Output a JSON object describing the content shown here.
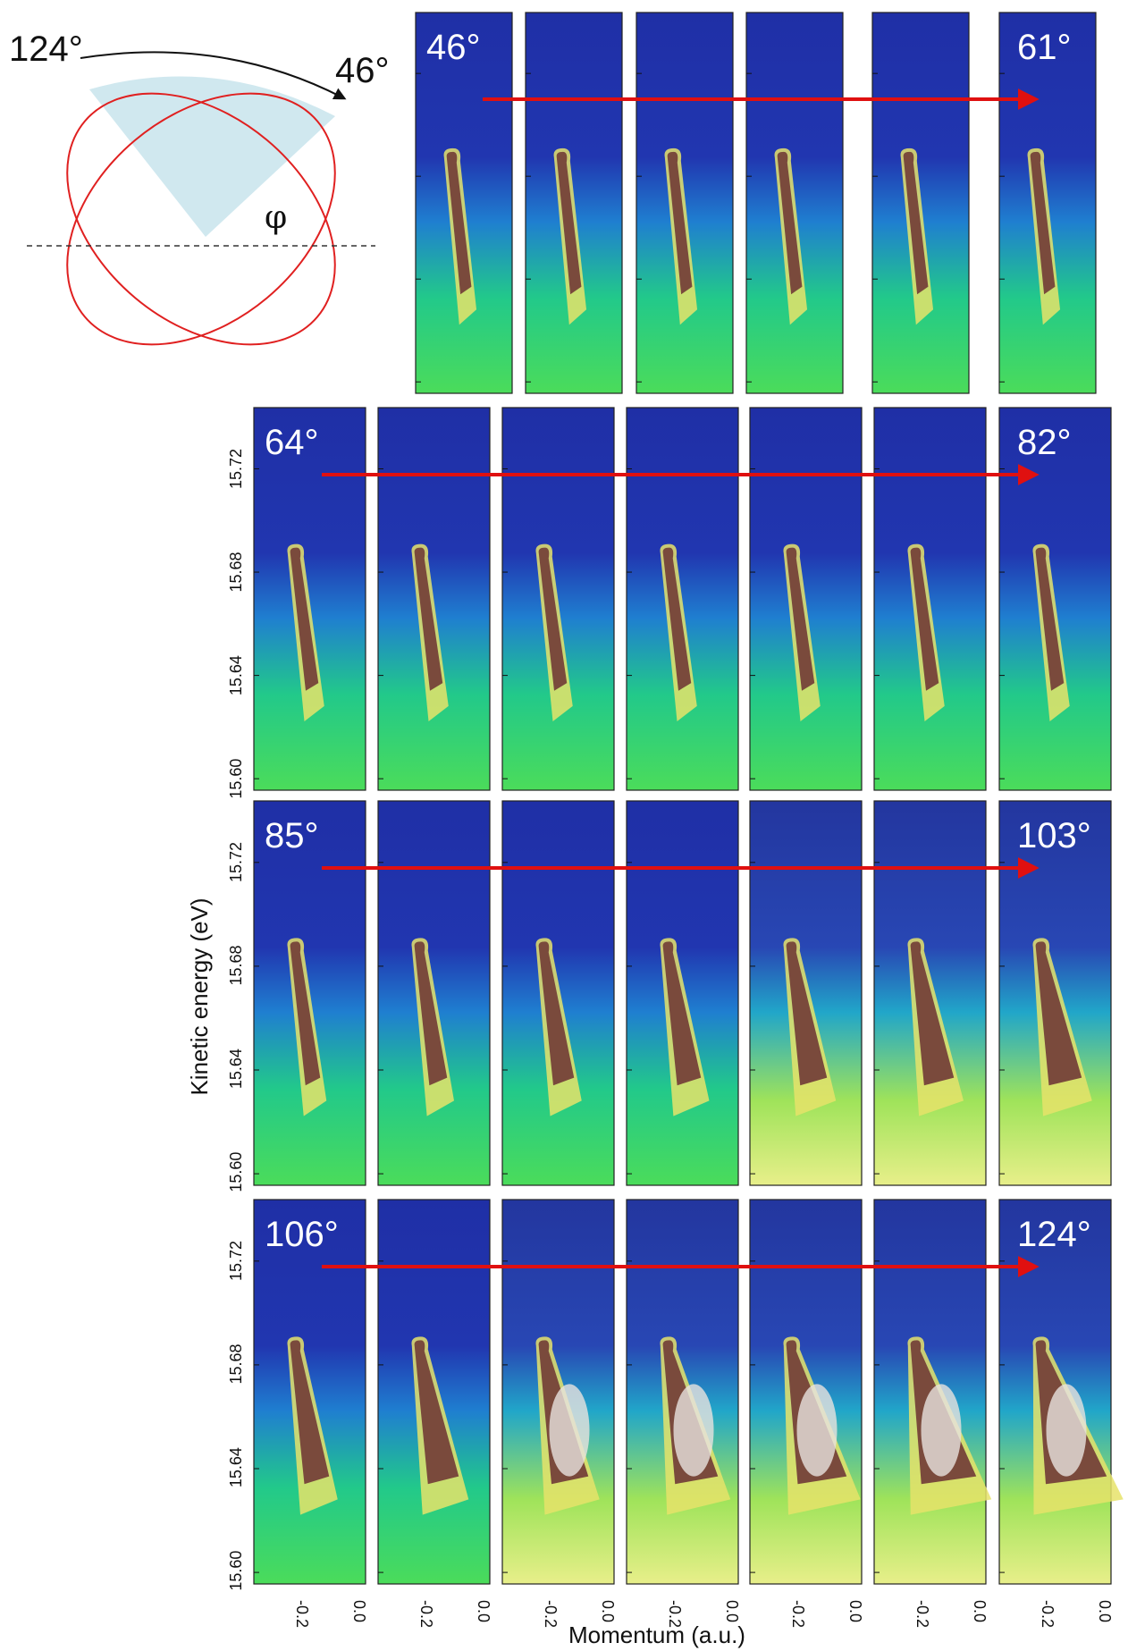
{
  "figure": {
    "schematic": {
      "start_angle": "124°",
      "end_angle": "46°",
      "phi_symbol": "φ"
    },
    "y_axis_label": "Kinetic energy (eV)",
    "x_axis_label": "Momentum (a.u.)",
    "energy_ticks": [
      "15.72",
      "15.68",
      "15.64",
      "15.60"
    ],
    "momentum_tick_labels": [
      "-0.2",
      "0.0"
    ],
    "rows": [
      {
        "first_label": "46°",
        "last_label": "61°",
        "panels": 6
      },
      {
        "first_label": "64°",
        "last_label": "82°",
        "panels": 7
      },
      {
        "first_label": "85°",
        "last_label": "103°",
        "panels": 7
      },
      {
        "first_label": "106°",
        "last_label": "124°",
        "panels": 7
      }
    ],
    "colors": {
      "background": "#2030a8",
      "arrow": "#e01010",
      "ellipse": "#e02020",
      "sector": "#c8e4ec"
    }
  }
}
